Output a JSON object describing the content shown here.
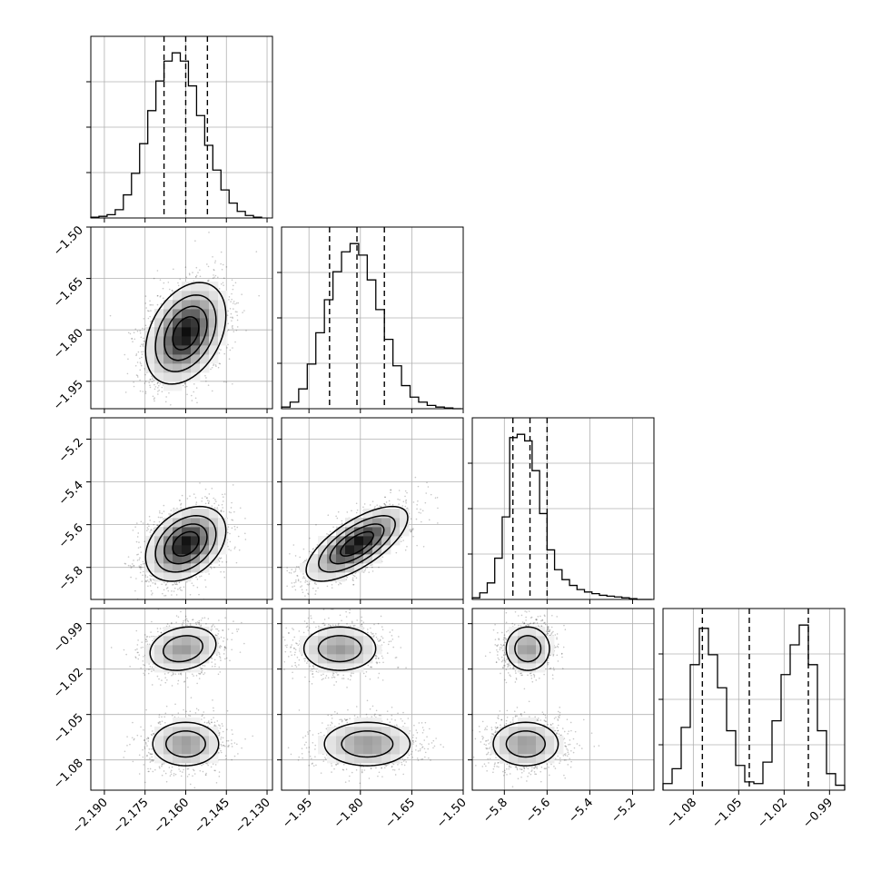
{
  "chart_data": {
    "type": "scatter",
    "title": "",
    "colors": {
      "ink": "#000000",
      "grid": "#b0b0b0",
      "background": "#ffffff"
    },
    "params": [
      {
        "id": "p0",
        "label": "",
        "range": [
          -2.195,
          -2.128
        ],
        "ticks": [
          -2.19,
          -2.175,
          -2.16,
          -2.145,
          -2.13
        ],
        "tick_labels": [
          "−2.190",
          "−2.175",
          "−2.160",
          "−2.145",
          "−2.130"
        ],
        "quantiles": [
          -2.168,
          -2.16,
          -2.152
        ],
        "hist": {
          "edges": [
            -2.195,
            -2.192,
            -2.189,
            -2.186,
            -2.183,
            -2.18,
            -2.177,
            -2.174,
            -2.171,
            -2.168,
            -2.165,
            -2.162,
            -2.159,
            -2.156,
            -2.153,
            -2.15,
            -2.147,
            -2.144,
            -2.141,
            -2.138,
            -2.135,
            -2.132
          ],
          "counts": [
            0.005,
            0.01,
            0.02,
            0.05,
            0.14,
            0.27,
            0.45,
            0.65,
            0.83,
            0.95,
            1.0,
            0.95,
            0.8,
            0.62,
            0.44,
            0.29,
            0.17,
            0.09,
            0.04,
            0.015,
            0.005
          ]
        }
      },
      {
        "id": "p1",
        "label": "",
        "range": [
          -2.03,
          -1.5
        ],
        "ticks": [
          -1.95,
          -1.8,
          -1.65,
          -1.5
        ],
        "tick_labels": [
          "−1.95",
          "−1.80",
          "−1.65",
          "−1.50"
        ],
        "quantiles": [
          -1.89,
          -1.81,
          -1.73
        ],
        "hist": {
          "edges": [
            -2.03,
            -2.005,
            -1.98,
            -1.955,
            -1.93,
            -1.905,
            -1.88,
            -1.855,
            -1.83,
            -1.805,
            -1.78,
            -1.755,
            -1.73,
            -1.705,
            -1.68,
            -1.655,
            -1.63,
            -1.605,
            -1.58,
            -1.555,
            -1.53,
            -1.505
          ],
          "counts": [
            0.01,
            0.04,
            0.12,
            0.27,
            0.46,
            0.66,
            0.83,
            0.95,
            1.0,
            0.93,
            0.78,
            0.6,
            0.42,
            0.26,
            0.14,
            0.07,
            0.04,
            0.02,
            0.01,
            0.005,
            0.0
          ]
        }
      },
      {
        "id": "p2",
        "label": "",
        "range": [
          -5.95,
          -5.1
        ],
        "ticks": [
          -5.8,
          -5.6,
          -5.4,
          -5.2
        ],
        "tick_labels": [
          "−5.8",
          "−5.6",
          "−5.4",
          "−5.2"
        ],
        "quantiles": [
          -5.76,
          -5.68,
          -5.6
        ],
        "hist": {
          "edges": [
            -5.95,
            -5.915,
            -5.88,
            -5.845,
            -5.81,
            -5.775,
            -5.74,
            -5.705,
            -5.67,
            -5.635,
            -5.6,
            -5.565,
            -5.53,
            -5.495,
            -5.46,
            -5.425,
            -5.39,
            -5.355,
            -5.32,
            -5.285,
            -5.25,
            -5.215,
            -5.18,
            -5.145,
            -5.11
          ],
          "counts": [
            0.01,
            0.04,
            0.1,
            0.25,
            0.5,
            0.98,
            1.0,
            0.96,
            0.78,
            0.52,
            0.3,
            0.18,
            0.12,
            0.085,
            0.06,
            0.045,
            0.035,
            0.025,
            0.02,
            0.015,
            0.01,
            0.005,
            0.0,
            0.0
          ]
        }
      },
      {
        "id": "p3",
        "label": "",
        "range": [
          -1.1,
          -0.98
        ],
        "ticks": [
          -1.08,
          -1.05,
          -1.02,
          -0.99
        ],
        "tick_labels": [
          "−1.08",
          "−1.05",
          "−1.02",
          "−0.99"
        ],
        "quantiles": [
          -1.074,
          -1.043,
          -1.004
        ],
        "hist": {
          "edges": [
            -1.1,
            -1.094,
            -1.088,
            -1.082,
            -1.076,
            -1.07,
            -1.064,
            -1.058,
            -1.052,
            -1.046,
            -1.04,
            -1.034,
            -1.028,
            -1.022,
            -1.016,
            -1.01,
            -1.004,
            -0.998,
            -0.992,
            -0.986,
            -0.98
          ],
          "counts": [
            0.04,
            0.13,
            0.38,
            0.76,
            0.98,
            0.82,
            0.62,
            0.36,
            0.15,
            0.05,
            0.04,
            0.17,
            0.42,
            0.7,
            0.88,
            1.0,
            0.76,
            0.36,
            0.1,
            0.03
          ]
        }
      }
    ],
    "pairs": [
      {
        "x": "p0",
        "y": "p1",
        "modes": [
          {
            "mx": -2.16,
            "my": -1.81,
            "sx": 0.0072,
            "sy": 0.072,
            "rho": 0.35,
            "w": 1.0
          }
        ],
        "heatmap_bins": 20,
        "contour_levels": [
          0.12,
          0.3,
          0.55,
          0.8
        ]
      },
      {
        "x": "p0",
        "y": "p2",
        "modes": [
          {
            "mx": -2.16,
            "my": -5.69,
            "sx": 0.0072,
            "sy": 0.085,
            "rho": 0.35,
            "w": 1.0
          }
        ],
        "heatmap_bins": 20,
        "contour_levels": [
          0.12,
          0.3,
          0.55,
          0.8
        ]
      },
      {
        "x": "p1",
        "y": "p2",
        "modes": [
          {
            "mx": -1.81,
            "my": -5.69,
            "sx": 0.072,
            "sy": 0.085,
            "rho": 0.7,
            "w": 1.0
          }
        ],
        "heatmap_bins": 20,
        "contour_levels": [
          0.12,
          0.3,
          0.55,
          0.8
        ]
      },
      {
        "x": "p0",
        "y": "p3",
        "modes": [
          {
            "mx": -2.161,
            "my": -1.0065,
            "sx": 0.0072,
            "sy": 0.0085,
            "rho": 0.2,
            "w": 0.5
          },
          {
            "mx": -2.16,
            "my": -1.0695,
            "sx": 0.0072,
            "sy": 0.0085,
            "rho": 0.0,
            "w": 0.5
          }
        ],
        "heatmap_bins": 20,
        "contour_levels": [
          0.12,
          0.3,
          0.55,
          0.8
        ]
      },
      {
        "x": "p1",
        "y": "p3",
        "modes": [
          {
            "mx": -1.86,
            "my": -1.0065,
            "sx": 0.062,
            "sy": 0.0085,
            "rho": 0.0,
            "w": 0.5
          },
          {
            "mx": -1.78,
            "my": -1.0695,
            "sx": 0.074,
            "sy": 0.0085,
            "rho": 0.0,
            "w": 0.5
          }
        ],
        "heatmap_bins": 20,
        "contour_levels": [
          0.12,
          0.3,
          0.55,
          0.8
        ]
      },
      {
        "x": "p2",
        "y": "p3",
        "modes": [
          {
            "mx": -5.69,
            "my": -1.0065,
            "sx": 0.06,
            "sy": 0.0085,
            "rho": 0.0,
            "w": 0.5
          },
          {
            "mx": -5.7,
            "my": -1.0695,
            "sx": 0.09,
            "sy": 0.0085,
            "rho": 0.0,
            "w": 0.5
          }
        ],
        "heatmap_bins": 20,
        "contour_levels": [
          0.12,
          0.3,
          0.55,
          0.8
        ]
      }
    ],
    "grid": true,
    "legend": "none",
    "quantile_lines": "dashed"
  }
}
